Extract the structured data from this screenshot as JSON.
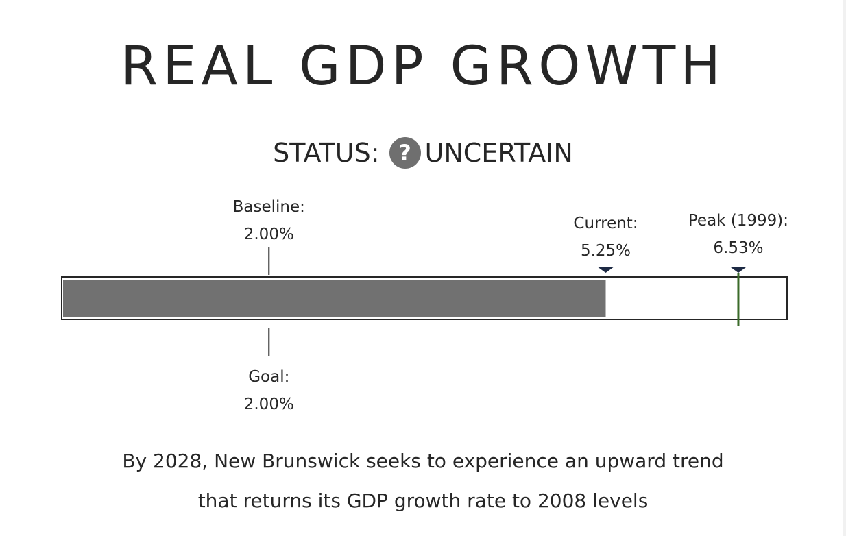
{
  "title": "REAL GDP GROWTH",
  "status": {
    "label": "STATUS:",
    "icon": "question-mark-icon",
    "icon_glyph": "?",
    "value": "UNCERTAIN",
    "icon_color": "#6f6f6f"
  },
  "chart_data": {
    "type": "bullet",
    "unit": "%",
    "range": [
      0,
      7.0
    ],
    "bar": {
      "name": "Current",
      "value": 5.25,
      "color": "#717171"
    },
    "markers": [
      {
        "id": "baseline",
        "label": "Baseline:",
        "value_text": "2.00%",
        "value": 2.0,
        "position": "above",
        "style": "line"
      },
      {
        "id": "goal",
        "label": "Goal:",
        "value_text": "2.00%",
        "value": 2.0,
        "position": "below",
        "style": "line"
      },
      {
        "id": "current",
        "label": "Current:",
        "value_text": "5.25%",
        "value": 5.25,
        "position": "above",
        "style": "triangle"
      },
      {
        "id": "peak",
        "label": "Peak (1999):",
        "value_text": "6.53%",
        "value": 6.53,
        "position": "above",
        "style": "triangle-line",
        "color": "#3b6b2a"
      }
    ]
  },
  "caption": {
    "line1": "By 2028, New Brunswick seeks to experience an upward trend",
    "line2": "that returns its GDP growth rate to 2008 levels"
  }
}
